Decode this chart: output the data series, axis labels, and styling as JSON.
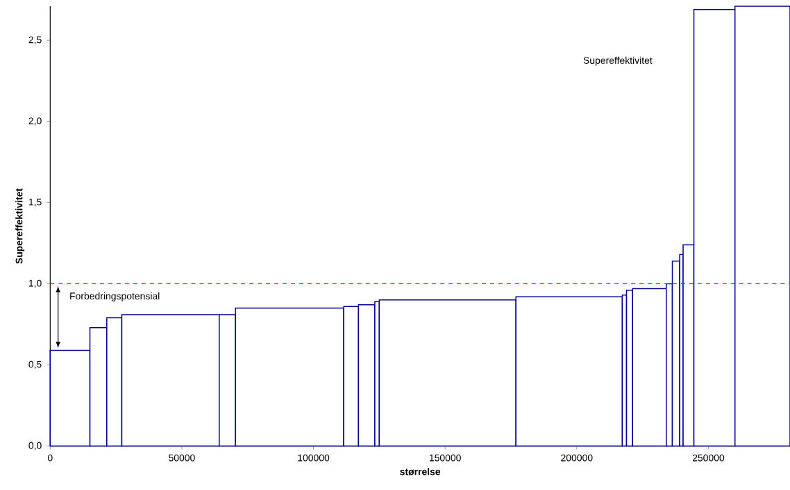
{
  "chart_data": {
    "type": "histogram",
    "xlabel": "størrelse",
    "ylabel": "Supereffektivitet",
    "bins": [
      0,
      15100,
      21500,
      27200,
      64200,
      70400,
      111500,
      117100,
      123300,
      125000,
      176900,
      217300,
      218900,
      221200,
      234000,
      236300,
      239100,
      240400,
      244500,
      260100,
      281000
    ],
    "values": [
      0.59,
      0.73,
      0.79,
      0.81,
      0.81,
      0.85,
      0.86,
      0.87,
      0.89,
      0.9,
      0.92,
      0.93,
      0.96,
      0.97,
      1.0,
      1.14,
      1.18,
      1.24,
      2.69,
      2.71
    ],
    "color": "#000099",
    "xlim": [
      0,
      281000
    ],
    "ylim": [
      0,
      2.71
    ],
    "xticks": [
      0,
      50000,
      100000,
      150000,
      200000,
      250000
    ],
    "yticks": [
      {
        "value": 0,
        "label": "0,0"
      },
      {
        "value": 0.5,
        "label": "0,5"
      },
      {
        "value": 1,
        "label": "1,0"
      },
      {
        "value": 1.5,
        "label": "1,5"
      },
      {
        "value": 2,
        "label": "2,0"
      },
      {
        "value": 2.5,
        "label": "2,5"
      }
    ],
    "ref_lines": [
      {
        "axis": "y",
        "value": 1,
        "color": "#ff0000",
        "line_style": "dashed"
      }
    ],
    "annotations": [
      {
        "text": "Forbedringspotensial",
        "x": 3000,
        "y": 1
      },
      "Supereffektivitet"
    ],
    "grid": false
  }
}
